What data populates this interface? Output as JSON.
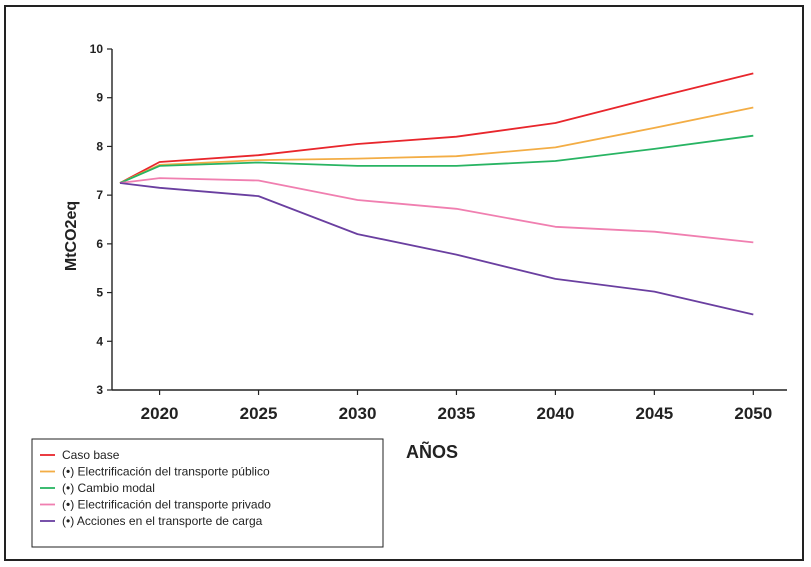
{
  "chart_data": {
    "type": "line",
    "xlabel": "AÑOS",
    "ylabel": "MtCO2eq",
    "x_ticks": [
      2020,
      2025,
      2030,
      2035,
      2040,
      2045,
      2050
    ],
    "y_ticks": [
      3,
      4,
      5,
      6,
      7,
      8,
      9,
      10
    ],
    "xlim": [
      2018,
      2051.5
    ],
    "ylim": [
      3,
      10
    ],
    "grid": false,
    "legend_position": "bottom-left",
    "series": [
      {
        "name": "Caso base",
        "color": "#e8262c",
        "x": [
          2018,
          2020,
          2025,
          2030,
          2035,
          2040,
          2045,
          2050
        ],
        "y": [
          7.25,
          7.68,
          7.82,
          8.05,
          8.2,
          8.48,
          9.0,
          9.5
        ]
      },
      {
        "name": "(•) Electrificación del transporte público",
        "color": "#f3ad45",
        "x": [
          2018,
          2020,
          2025,
          2030,
          2035,
          2040,
          2045,
          2050
        ],
        "y": [
          7.25,
          7.62,
          7.72,
          7.75,
          7.8,
          7.98,
          8.38,
          8.8
        ]
      },
      {
        "name": "(•) Cambio modal",
        "color": "#28b463",
        "x": [
          2018,
          2020,
          2025,
          2030,
          2035,
          2040,
          2045,
          2050
        ],
        "y": [
          7.25,
          7.6,
          7.67,
          7.6,
          7.6,
          7.7,
          7.95,
          8.22
        ]
      },
      {
        "name": "(•) Electrificación del transporte privado",
        "color": "#f07fb0",
        "x": [
          2018,
          2020,
          2025,
          2030,
          2035,
          2040,
          2045,
          2050
        ],
        "y": [
          7.25,
          7.35,
          7.3,
          6.9,
          6.72,
          6.35,
          6.25,
          6.03
        ]
      },
      {
        "name": "(•) Acciones en el transporte de carga",
        "color": "#6a3fa0",
        "x": [
          2018,
          2020,
          2025,
          2030,
          2035,
          2040,
          2045,
          2050
        ],
        "y": [
          7.25,
          7.15,
          6.98,
          6.2,
          5.78,
          5.28,
          5.02,
          4.55
        ]
      }
    ]
  }
}
